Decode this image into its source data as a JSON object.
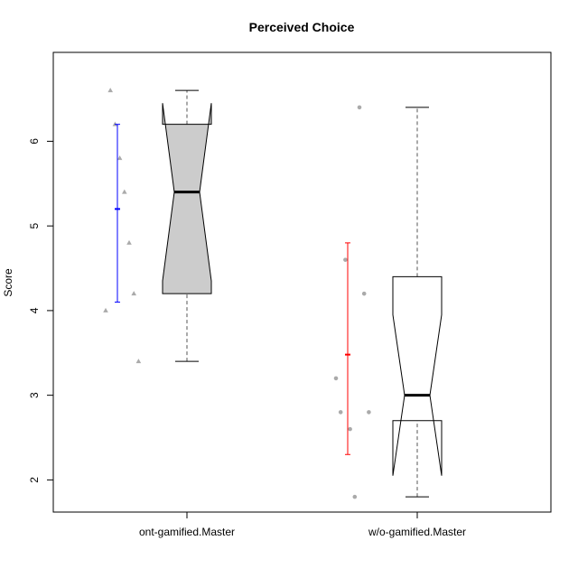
{
  "chart_data": {
    "type": "boxplot",
    "title": "Perceived Choice",
    "ylabel": "Score",
    "xlabel": "",
    "ylim": [
      1.62,
      7.05
    ],
    "yticks": [
      2,
      3,
      4,
      5,
      6
    ],
    "categories": [
      "ont-gamified.Master",
      "w/o-gamified.Master"
    ],
    "groups": [
      {
        "category": "ont-gamified.Master",
        "box": {
          "min": 3.4,
          "q1": 4.2,
          "median": 5.4,
          "q3": 6.2,
          "max": 6.6,
          "notch_low": 4.35,
          "notch_high": 6.45
        },
        "fill": "#cccccc",
        "points": [
          {
            "x": 1,
            "y": 4.0
          },
          {
            "x": 2,
            "y": 6.6
          },
          {
            "x": 3,
            "y": 6.2
          },
          {
            "x": 4,
            "y": 5.8
          },
          {
            "x": 5,
            "y": 5.4
          },
          {
            "x": 6,
            "y": 4.8
          },
          {
            "x": 7,
            "y": 4.2
          },
          {
            "x": 8,
            "y": 3.4
          }
        ],
        "point_shape": "triangle",
        "mean": 5.2,
        "ci": [
          4.1,
          6.2
        ],
        "ci_color": "#0000ff"
      },
      {
        "category": "w/o-gamified.Master",
        "box": {
          "min": 1.8,
          "q1": 2.7,
          "median": 3.0,
          "q3": 4.4,
          "max": 6.4,
          "notch_low": 2.05,
          "notch_high": 3.95
        },
        "fill": "#ffffff",
        "points": [
          {
            "x": 1,
            "y": 3.2
          },
          {
            "x": 2,
            "y": 2.8
          },
          {
            "x": 3,
            "y": 4.6
          },
          {
            "x": 4,
            "y": 2.6
          },
          {
            "x": 5,
            "y": 1.8
          },
          {
            "x": 6,
            "y": 6.4
          },
          {
            "x": 7,
            "y": 4.2
          },
          {
            "x": 8,
            "y": 2.8
          }
        ],
        "point_shape": "circle",
        "mean": 3.48,
        "ci": [
          2.3,
          4.8
        ],
        "ci_color": "#ff0000"
      }
    ],
    "point_color": "#aaaaaa",
    "grid": false,
    "legend": "none"
  }
}
